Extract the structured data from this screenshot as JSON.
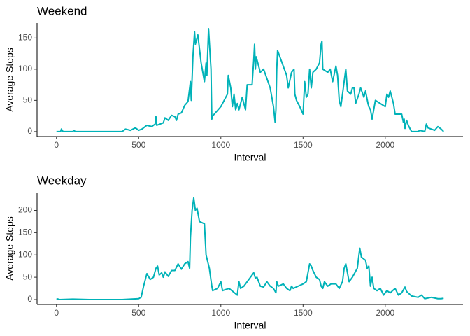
{
  "chart_data": [
    {
      "type": "line",
      "title": "Weekend",
      "x_label": "Interval",
      "y_label": "Average Steps",
      "xlim": [
        -118,
        2473
      ],
      "xticks": [
        0,
        500,
        1000,
        1500,
        2000
      ],
      "ylim": [
        -8,
        174
      ],
      "yticks": [
        0,
        50,
        100,
        150
      ],
      "grid": false,
      "x": [
        0,
        25,
        30,
        40,
        100,
        105,
        115,
        400,
        420,
        450,
        480,
        500,
        520,
        550,
        580,
        600,
        605,
        610,
        650,
        660,
        680,
        700,
        720,
        730,
        740,
        760,
        780,
        800,
        815,
        820,
        830,
        840,
        845,
        860,
        880,
        900,
        910,
        915,
        925,
        940,
        945,
        950,
        1000,
        1030,
        1040,
        1045,
        1060,
        1070,
        1080,
        1090,
        1100,
        1110,
        1130,
        1150,
        1160,
        1190,
        1200,
        1205,
        1210,
        1215,
        1240,
        1260,
        1300,
        1310,
        1320,
        1330,
        1335,
        1340,
        1345,
        1400,
        1410,
        1430,
        1445,
        1450,
        1460,
        1480,
        1500,
        1510,
        1520,
        1530,
        1540,
        1550,
        1560,
        1580,
        1600,
        1610,
        1615,
        1620,
        1650,
        1665,
        1680,
        1700,
        1710,
        1720,
        1730,
        1760,
        1770,
        1790,
        1800,
        1810,
        1820,
        1840,
        1850,
        1870,
        1880,
        1895,
        1900,
        1910,
        1920,
        1940,
        2000,
        2010,
        2020,
        2030,
        2040,
        2050,
        2060,
        2100,
        2110,
        2115,
        2120,
        2130,
        2140,
        2160,
        2200,
        2210,
        2240,
        2250,
        2260,
        2300,
        2320,
        2340,
        2355
      ],
      "series": [
        {
          "name": "Weekend",
          "color": "#00b2b8",
          "values": [
            0,
            0,
            4,
            0,
            0,
            2,
            0,
            0,
            4,
            2,
            6,
            2,
            4,
            10,
            8,
            12,
            24,
            10,
            14,
            22,
            18,
            26,
            24,
            18,
            28,
            30,
            42,
            48,
            80,
            50,
            120,
            160,
            140,
            155,
            110,
            80,
            110,
            90,
            165,
            100,
            20,
            25,
            40,
            55,
            60,
            90,
            70,
            40,
            60,
            35,
            45,
            35,
            55,
            35,
            75,
            75,
            115,
            140,
            100,
            120,
            95,
            100,
            70,
            55,
            40,
            15,
            35,
            100,
            130,
            90,
            70,
            95,
            100,
            60,
            50,
            40,
            28,
            80,
            55,
            60,
            100,
            70,
            95,
            100,
            110,
            140,
            145,
            100,
            95,
            100,
            80,
            105,
            90,
            50,
            40,
            100,
            65,
            60,
            70,
            70,
            45,
            60,
            70,
            55,
            65,
            45,
            40,
            35,
            20,
            50,
            40,
            60,
            55,
            65,
            55,
            45,
            28,
            28,
            15,
            20,
            5,
            18,
            10,
            0,
            0,
            2,
            0,
            12,
            6,
            2,
            8,
            4,
            0
          ]
        }
      ]
    },
    {
      "type": "line",
      "title": "Weekday",
      "x_label": "Interval",
      "y_label": "Average Steps",
      "xlim": [
        -118,
        2473
      ],
      "xticks": [
        0,
        500,
        1000,
        1500,
        2000
      ],
      "ylim": [
        -11,
        240
      ],
      "yticks": [
        0,
        50,
        100,
        150,
        200
      ],
      "grid": false,
      "x": [
        0,
        20,
        100,
        200,
        400,
        500,
        515,
        530,
        550,
        570,
        590,
        605,
        615,
        625,
        640,
        650,
        660,
        680,
        700,
        720,
        740,
        760,
        780,
        800,
        810,
        815,
        825,
        835,
        845,
        855,
        870,
        900,
        910,
        930,
        945,
        950,
        980,
        1000,
        1010,
        1050,
        1100,
        1110,
        1120,
        1140,
        1160,
        1180,
        1200,
        1210,
        1220,
        1240,
        1260,
        1280,
        1300,
        1320,
        1335,
        1340,
        1350,
        1380,
        1400,
        1420,
        1430,
        1440,
        1470,
        1500,
        1520,
        1540,
        1550,
        1560,
        1580,
        1600,
        1610,
        1620,
        1630,
        1650,
        1670,
        1700,
        1720,
        1740,
        1750,
        1760,
        1770,
        1780,
        1800,
        1830,
        1845,
        1855,
        1880,
        1890,
        1900,
        1910,
        1920,
        1930,
        1950,
        1970,
        1990,
        2010,
        2030,
        2060,
        2080,
        2100,
        2120,
        2130,
        2160,
        2200,
        2220,
        2240,
        2280,
        2320,
        2340,
        2355
      ],
      "series": [
        {
          "name": "Weekday",
          "color": "#00b2b8",
          "values": [
            2,
            0,
            1,
            0,
            0,
            2,
            5,
            30,
            58,
            45,
            50,
            70,
            75,
            55,
            60,
            50,
            62,
            52,
            65,
            65,
            80,
            68,
            80,
            85,
            70,
            140,
            200,
            228,
            200,
            205,
            175,
            170,
            100,
            70,
            30,
            20,
            25,
            40,
            20,
            25,
            10,
            40,
            25,
            30,
            40,
            50,
            60,
            48,
            50,
            30,
            28,
            40,
            30,
            25,
            15,
            40,
            30,
            35,
            25,
            20,
            30,
            25,
            30,
            35,
            40,
            80,
            75,
            65,
            50,
            45,
            30,
            25,
            40,
            30,
            35,
            35,
            25,
            40,
            70,
            80,
            60,
            40,
            50,
            70,
            115,
            95,
            88,
            70,
            75,
            30,
            50,
            25,
            20,
            25,
            10,
            20,
            15,
            25,
            10,
            15,
            28,
            18,
            8,
            5,
            10,
            2,
            5,
            2,
            2,
            3
          ]
        }
      ]
    }
  ]
}
